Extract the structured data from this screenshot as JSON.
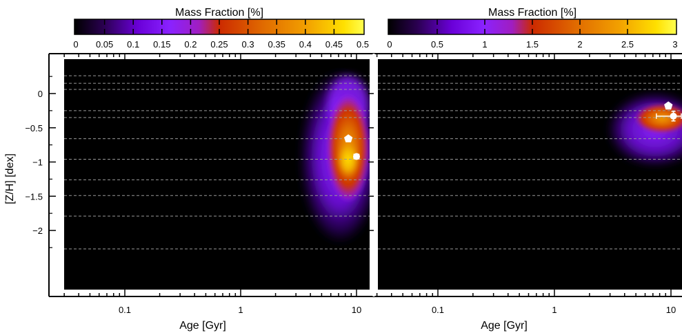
{
  "chart_data": [
    {
      "type": "heatmap",
      "panel": "left",
      "xlabel": "Age [Gyr]",
      "ylabel": "[Z/H] [dex]",
      "xscale": "log",
      "xlim": [
        0.03,
        14
      ],
      "ylim": [
        -2.35,
        0.4
      ],
      "x_ticks": [
        0.1,
        1,
        10
      ],
      "x_tick_labels": [
        "0.1",
        "1",
        "10"
      ],
      "y_ticks": [
        0,
        -0.5,
        -1,
        -1.5,
        -2
      ],
      "y_tick_labels": [
        "0",
        "−0.5",
        "−1",
        "−1.5",
        "−2"
      ],
      "grid_lines_z": [
        0.26,
        0.15,
        0.06,
        -0.25,
        -0.35,
        -0.66,
        -0.96,
        -1.26,
        -1.49,
        -1.79,
        -2.27
      ],
      "colorbar": {
        "label": "Mass Fraction [%]",
        "range": [
          0,
          0.5
        ],
        "ticks": [
          0,
          0.05,
          0.1,
          0.15,
          0.2,
          0.25,
          0.3,
          0.35,
          0.4,
          0.45,
          0.5
        ],
        "tick_labels": [
          "0",
          "0.05",
          "0.1",
          "0.15",
          "0.2",
          "0.25",
          "0.3",
          "0.35",
          "0.4",
          "0.45",
          "0.5"
        ]
      },
      "markers": [
        {
          "symbol": "pentagon",
          "age": 8.5,
          "zh": -0.66,
          "color": "#ffffff"
        },
        {
          "symbol": "circle",
          "age": 10.0,
          "zh": -0.92,
          "age_err": [
            9.5,
            10.5
          ],
          "zh_err": [
            -0.95,
            -0.89
          ],
          "color": "#ffffff"
        }
      ]
    },
    {
      "type": "heatmap",
      "panel": "right",
      "xlabel": "Age [Gyr]",
      "xscale": "log",
      "xlim": [
        0.03,
        14
      ],
      "ylim": [
        -2.35,
        0.4
      ],
      "x_ticks": [
        0.1,
        1,
        10
      ],
      "x_tick_labels": [
        "0.1",
        "1",
        "10"
      ],
      "grid_lines_z": [
        0.26,
        0.15,
        0.06,
        -0.25,
        -0.35,
        -0.66,
        -0.96,
        -1.26,
        -1.49,
        -1.79,
        -2.27
      ],
      "colorbar": {
        "label": "Mass Fraction [%]",
        "range": [
          0,
          3
        ],
        "ticks": [
          0,
          0.5,
          1,
          1.5,
          2,
          2.5,
          3
        ],
        "tick_labels": [
          "0",
          "0.5",
          "1",
          "1.5",
          "2",
          "2.5",
          "3"
        ]
      },
      "markers": [
        {
          "symbol": "pentagon",
          "age": 9.5,
          "zh": -0.18,
          "color": "#ffffff"
        },
        {
          "symbol": "circle",
          "age": 10.5,
          "zh": -0.33,
          "age_err": [
            7.5,
            14
          ],
          "zh_err": [
            -0.4,
            -0.26
          ],
          "color": "#ffffff"
        }
      ]
    }
  ],
  "colors": {
    "colormap": [
      "#000000",
      "#2a0050",
      "#6a00d8",
      "#8a22ff",
      "#c21c76",
      "#cc2a00",
      "#e06a00",
      "#f2a000",
      "#ffe000",
      "#ffff50"
    ],
    "background": "#000000",
    "grid": "#9a9a9a",
    "marker": "#ffffff"
  }
}
